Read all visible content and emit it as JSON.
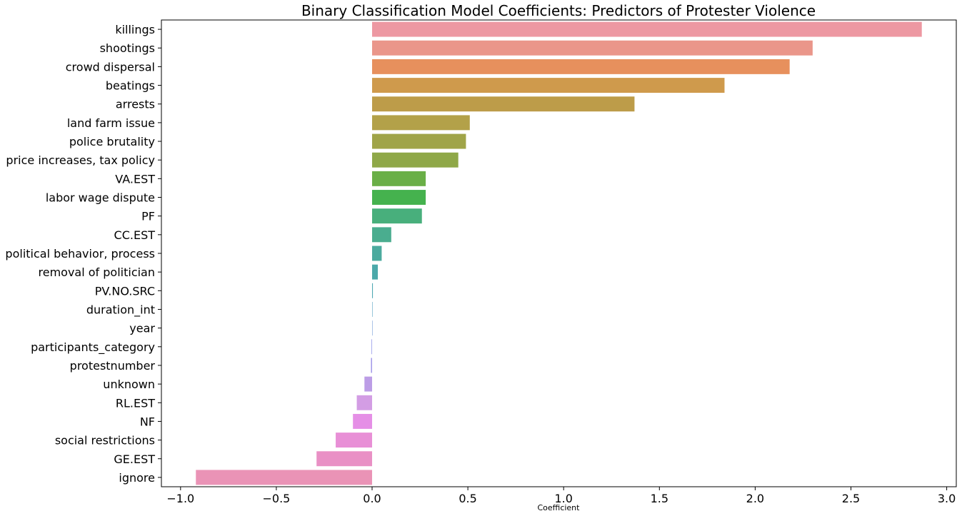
{
  "chart_data": {
    "type": "bar",
    "orientation": "horizontal",
    "title": "Binary Classification Model Coefficients: Predictors of Protester Violence",
    "xlabel": "Coefficient",
    "ylabel": "",
    "xlim": [
      -1.1,
      3.05
    ],
    "xticks": [
      -1.0,
      -0.5,
      0.0,
      0.5,
      1.0,
      1.5,
      2.0,
      2.5,
      3.0
    ],
    "xtick_labels": [
      "−1.0",
      "−0.5",
      "0.0",
      "0.5",
      "1.0",
      "1.5",
      "2.0",
      "2.5",
      "3.0"
    ],
    "grid": false,
    "legend": "none",
    "categories": [
      "killings",
      "shootings",
      "crowd dispersal",
      "beatings",
      "arrests",
      "land farm issue",
      "police brutality",
      "price increases, tax policy",
      "VA.EST",
      "labor wage dispute",
      "PF",
      "CC.EST",
      "political behavior, process",
      "removal of politician",
      "PV.NO.SRC",
      "duration_int",
      "year",
      "participants_category",
      "protestnumber",
      "unknown",
      "RL.EST",
      "NF",
      "social restrictions",
      "GE.EST",
      "ignore"
    ],
    "values": [
      2.87,
      2.3,
      2.18,
      1.84,
      1.37,
      0.51,
      0.49,
      0.45,
      0.28,
      0.28,
      0.26,
      0.1,
      0.05,
      0.03,
      0.004,
      0.002,
      0.0,
      -0.003,
      -0.006,
      -0.04,
      -0.08,
      -0.1,
      -0.19,
      -0.29,
      -0.92
    ],
    "colors": [
      "#ed98a2",
      "#ea968a",
      "#e7905d",
      "#cf9a4c",
      "#bd9c49",
      "#b3a149",
      "#a0a448",
      "#8fa848",
      "#6aaf47",
      "#45b24e",
      "#48af7c",
      "#4aad8f",
      "#4baa9e",
      "#4ca9aa",
      "#4ea7b4",
      "#57a3c1",
      "#769dd8",
      "#969ae9",
      "#a69de9",
      "#bc9de6",
      "#d39de4",
      "#e58fe6",
      "#e88fd6",
      "#e990c5",
      "#ea93b6"
    ]
  }
}
